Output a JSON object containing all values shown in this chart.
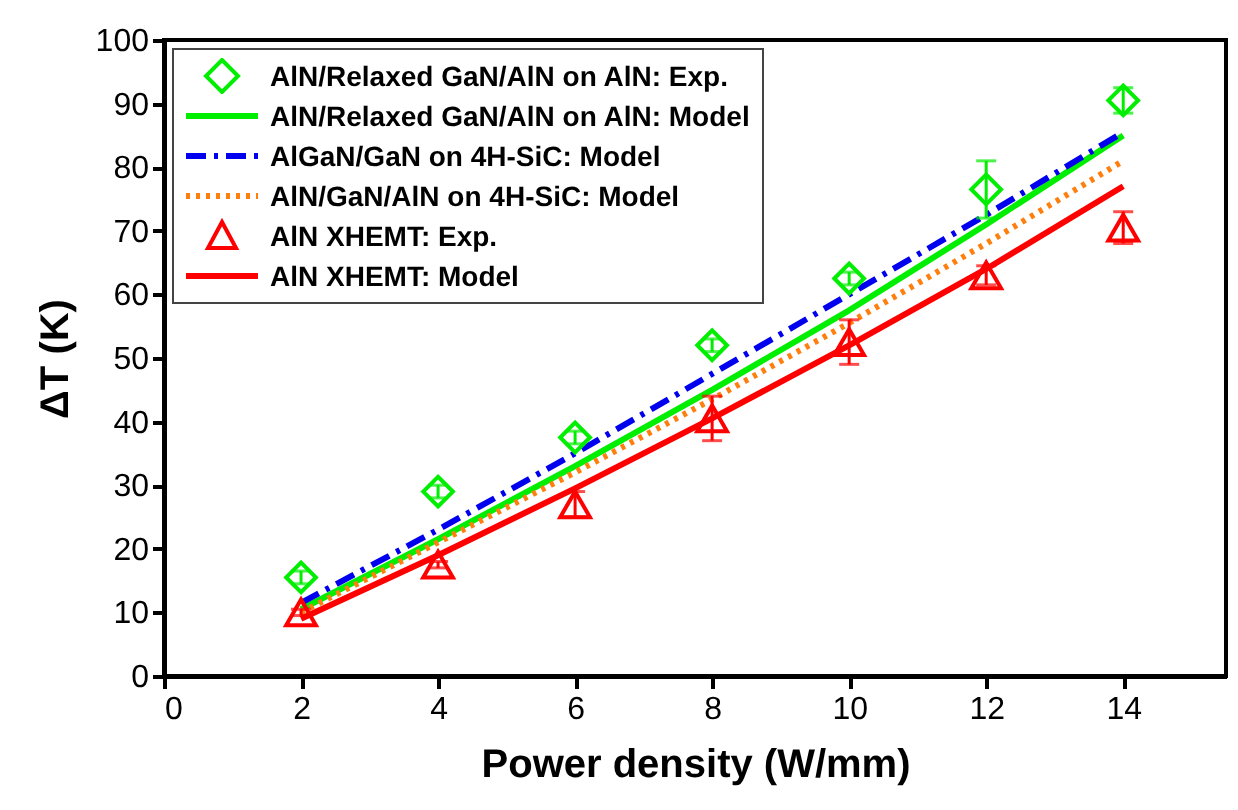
{
  "chart_data": {
    "type": "scatter",
    "xlabel": "Power density (W/mm)",
    "ylabel": "ΔT (K)",
    "x": [
      2,
      4,
      6,
      8,
      10,
      12,
      14
    ],
    "xlim": [
      0,
      15.5
    ],
    "xticks": [
      0,
      2,
      4,
      6,
      8,
      10,
      12,
      14
    ],
    "ylim": [
      0,
      100
    ],
    "yticks": [
      0,
      10,
      20,
      30,
      40,
      50,
      60,
      70,
      80,
      90,
      100
    ],
    "legend": "top left",
    "grid": false,
    "series": [
      {
        "name": "AlN/Relaxed GaN/AlN on AlN: Exp.",
        "type": "scatter",
        "marker": "diamond",
        "color": "#00ee00",
        "values": [
          15.5,
          29,
          37.5,
          52,
          62.5,
          76.5,
          90.5
        ],
        "errors": [
          1,
          1,
          1,
          1,
          1,
          4.5,
          2
        ]
      },
      {
        "name": "AlN/Relaxed GaN/AlN on AlN: Model",
        "type": "line",
        "line_style": "solid",
        "color": "#00ee00",
        "values": [
          10.5,
          21.5,
          33,
          45,
          57.5,
          71,
          85
        ]
      },
      {
        "name": "AlGaN/GaN on 4H-SiC: Model",
        "type": "line",
        "line_style": "dashed",
        "color": "#0000ee",
        "values": [
          11.5,
          23,
          35,
          47.5,
          60,
          72.5,
          85.5
        ]
      },
      {
        "name": "AlN/GaN/AlN on 4H-SiC: Model",
        "type": "line",
        "line_style": "dotted",
        "color": "#ff7f0e",
        "values": [
          10,
          21,
          32,
          43.5,
          55.5,
          68,
          81
        ]
      },
      {
        "name": "AlN XHEMT: Exp.",
        "type": "scatter",
        "marker": "triangle",
        "color": "#ff0000",
        "values": [
          10,
          17.5,
          27,
          40.5,
          52.5,
          63,
          70.5
        ],
        "errors": [
          0.5,
          0.5,
          2,
          3.5,
          3.5,
          1.5,
          2.5
        ]
      },
      {
        "name": "AlN XHEMT: Model",
        "type": "line",
        "line_style": "solid",
        "color": "#ff0000",
        "values": [
          9,
          19,
          29.5,
          40.5,
          52,
          64,
          77
        ]
      }
    ]
  }
}
